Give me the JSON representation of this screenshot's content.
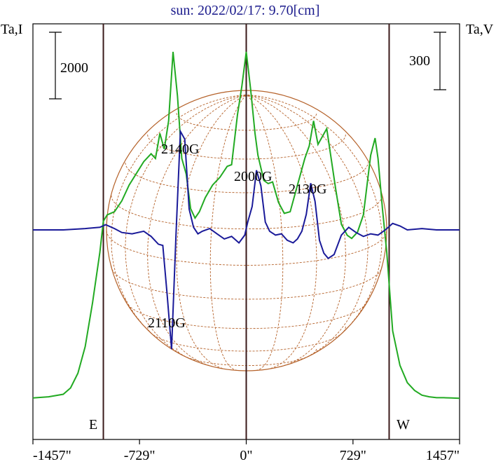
{
  "chart_data": {
    "type": "line",
    "title": "sun: 2022/02/17: 9.70[cm]",
    "ylabel_left": "Ta,I",
    "ylabel_right": "Ta,V",
    "xticks": [
      {
        "value": -1457,
        "label": "-1457\""
      },
      {
        "value": -729,
        "label": "-729\""
      },
      {
        "value": 0,
        "label": "0\""
      },
      {
        "value": 729,
        "label": "729\""
      },
      {
        "value": 1457,
        "label": "1457\""
      }
    ],
    "xlim": [
      -1457,
      1457
    ],
    "vertical_markers": [
      {
        "value": -976,
        "label": "E"
      },
      {
        "value": 0,
        "label": ""
      },
      {
        "value": 976,
        "label": "W"
      }
    ],
    "scale_bars": [
      {
        "side": "left",
        "label": "2000"
      },
      {
        "side": "right",
        "label": "300"
      }
    ],
    "annotations": [
      "2140G",
      "2000G",
      "2130G",
      "2110G"
    ],
    "series": [
      {
        "id": "stokes-i",
        "color": "#22aa22",
        "x": [
          -1457,
          -1350,
          -1250,
          -1200,
          -1150,
          -1100,
          -1050,
          -1000,
          -976,
          -950,
          -900,
          -850,
          -800,
          -700,
          -650,
          -620,
          -590,
          -560,
          -530,
          -500,
          -470,
          -440,
          -410,
          -380,
          -350,
          -320,
          -280,
          -230,
          -180,
          -130,
          -100,
          -60,
          -30,
          0,
          30,
          60,
          80,
          120,
          150,
          180,
          220,
          260,
          300,
          350,
          400,
          430,
          460,
          490,
          520,
          550,
          580,
          610,
          650,
          690,
          720,
          760,
          800,
          850,
          880,
          900,
          930,
          960,
          1000,
          1050,
          1100,
          1150,
          1200,
          1250,
          1300,
          1350,
          1400,
          1457
        ],
        "y": [
          160,
          200,
          280,
          480,
          950,
          1800,
          3200,
          4800,
          5800,
          6000,
          6100,
          6450,
          6950,
          7700,
          7950,
          7800,
          8600,
          8100,
          9000,
          11200,
          9800,
          7800,
          7300,
          6200,
          5900,
          6100,
          6550,
          6950,
          7200,
          7550,
          7600,
          9200,
          10100,
          11200,
          10000,
          8600,
          7900,
          7100,
          7000,
          7050,
          6400,
          6050,
          6100,
          6950,
          7800,
          8200,
          9000,
          8250,
          8500,
          8750,
          7800,
          6850,
          5700,
          5350,
          5250,
          5450,
          6000,
          7900,
          8450,
          7800,
          6200,
          4800,
          2300,
          1200,
          650,
          400,
          250,
          200,
          170,
          170,
          160,
          150
        ]
      },
      {
        "id": "stokes-v",
        "color": "#1a1a99",
        "x": [
          -1457,
          -1250,
          -1100,
          -1000,
          -960,
          -900,
          -850,
          -780,
          -700,
          -650,
          -600,
          -570,
          -540,
          -510,
          -480,
          -450,
          -420,
          -390,
          -360,
          -330,
          -300,
          -250,
          -200,
          -150,
          -100,
          -50,
          -10,
          10,
          40,
          70,
          100,
          130,
          160,
          200,
          240,
          280,
          320,
          350,
          380,
          410,
          440,
          470,
          500,
          530,
          560,
          600,
          650,
          700,
          750,
          800,
          850,
          900,
          950,
          1000,
          1050,
          1100,
          1200,
          1300,
          1457
        ],
        "y": [
          0,
          0,
          5,
          10,
          20,
          5,
          -10,
          -15,
          -5,
          -25,
          -55,
          -60,
          -250,
          -460,
          -20,
          380,
          350,
          80,
          10,
          -15,
          -5,
          5,
          -15,
          -35,
          -25,
          -50,
          -20,
          30,
          90,
          230,
          170,
          30,
          -5,
          -20,
          -15,
          -40,
          -50,
          -35,
          -5,
          60,
          180,
          110,
          -40,
          -90,
          -110,
          -95,
          -20,
          10,
          -10,
          -25,
          -15,
          -20,
          0,
          25,
          15,
          0,
          5,
          0,
          0
        ]
      }
    ],
    "i_scale": {
      "y0": 0,
      "y1": 11200
    },
    "v_scale": {
      "min": -500,
      "max": 400
    }
  }
}
